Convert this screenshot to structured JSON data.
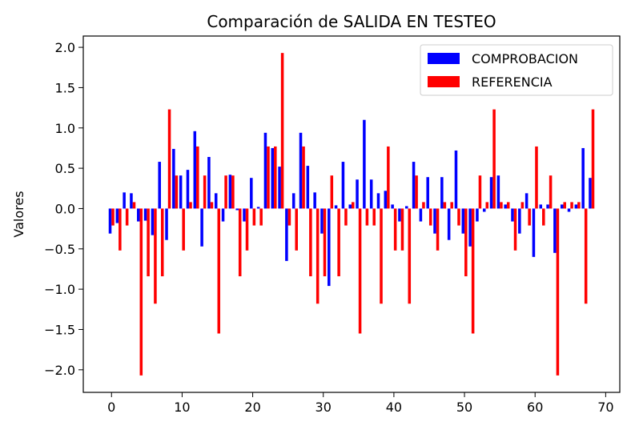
{
  "chart_data": {
    "type": "bar",
    "title": "Comparación de SALIDA EN TESTEO",
    "xlabel": "",
    "ylabel": "Valores",
    "xlim": [
      -4,
      72
    ],
    "ylim": [
      -2.28,
      2.14
    ],
    "x_ticks": [
      0,
      10,
      20,
      30,
      40,
      50,
      60,
      70
    ],
    "y_ticks": [
      -2.0,
      -1.5,
      -1.0,
      -0.5,
      0.0,
      0.5,
      1.0,
      1.5,
      2.0
    ],
    "x_tick_labels": [
      "0",
      "10",
      "20",
      "30",
      "40",
      "50",
      "60",
      "70"
    ],
    "y_tick_labels": [
      "−2.0",
      "−1.5",
      "−1.0",
      "−0.5",
      "0.0",
      "0.5",
      "1.0",
      "1.5",
      "2.0"
    ],
    "grid": false,
    "legend_position": "top-right",
    "x": [
      0,
      1,
      2,
      3,
      4,
      5,
      6,
      7,
      8,
      9,
      10,
      11,
      12,
      13,
      14,
      15,
      16,
      17,
      18,
      19,
      20,
      21,
      22,
      23,
      24,
      25,
      26,
      27,
      28,
      29,
      30,
      31,
      32,
      33,
      34,
      35,
      36,
      37,
      38,
      39,
      40,
      41,
      42,
      43,
      44,
      45,
      46,
      47,
      48,
      49,
      50,
      51,
      52,
      53,
      54,
      55,
      56,
      57,
      58,
      59,
      60,
      61,
      62,
      63,
      64,
      65,
      66,
      67,
      68
    ],
    "series": [
      {
        "name": "COMPROBACION",
        "color": "#0000ff",
        "values": [
          -0.31,
          -0.18,
          0.2,
          0.19,
          -0.16,
          -0.15,
          -0.33,
          0.58,
          -0.39,
          0.74,
          0.41,
          0.48,
          0.96,
          -0.47,
          0.64,
          0.19,
          -0.16,
          0.42,
          -0.02,
          -0.16,
          0.38,
          0.02,
          0.94,
          0.75,
          0.52,
          -0.65,
          0.19,
          0.94,
          0.53,
          0.2,
          -0.31,
          -0.96,
          0.04,
          0.58,
          0.05,
          0.36,
          1.1,
          0.36,
          0.19,
          0.22,
          0.05,
          -0.16,
          0.03,
          0.58,
          -0.16,
          0.39,
          -0.31,
          0.39,
          -0.39,
          0.72,
          -0.31,
          -0.47,
          -0.16,
          -0.04,
          0.39,
          0.41,
          0.05,
          -0.16,
          -0.31,
          0.19,
          -0.6,
          0.05,
          0.05,
          -0.55,
          0.05,
          -0.04,
          0.05,
          0.75,
          0.38
        ]
      },
      {
        "name": "REFERENCIA",
        "color": "#ff0000",
        "values": [
          -0.21,
          -0.52,
          -0.21,
          0.08,
          -2.07,
          -0.84,
          -1.18,
          -0.84,
          1.23,
          0.41,
          -0.52,
          0.08,
          0.77,
          0.41,
          0.08,
          -1.55,
          0.41,
          0.41,
          -0.84,
          -0.52,
          -0.21,
          -0.21,
          0.77,
          0.77,
          1.93,
          -0.21,
          -0.52,
          0.77,
          -0.84,
          -1.18,
          -0.84,
          0.41,
          -0.84,
          -0.21,
          0.08,
          -1.55,
          -0.21,
          -0.21,
          -1.18,
          0.77,
          -0.52,
          -0.52,
          -1.18,
          0.41,
          0.08,
          -0.21,
          -0.52,
          0.08,
          0.08,
          -0.21,
          -0.84,
          -1.55,
          0.41,
          0.08,
          1.23,
          0.08,
          0.08,
          -0.52,
          0.08,
          -0.21,
          0.77,
          -0.21,
          0.41,
          -2.07,
          0.08,
          0.08,
          0.08,
          -1.18,
          1.23
        ]
      }
    ]
  }
}
